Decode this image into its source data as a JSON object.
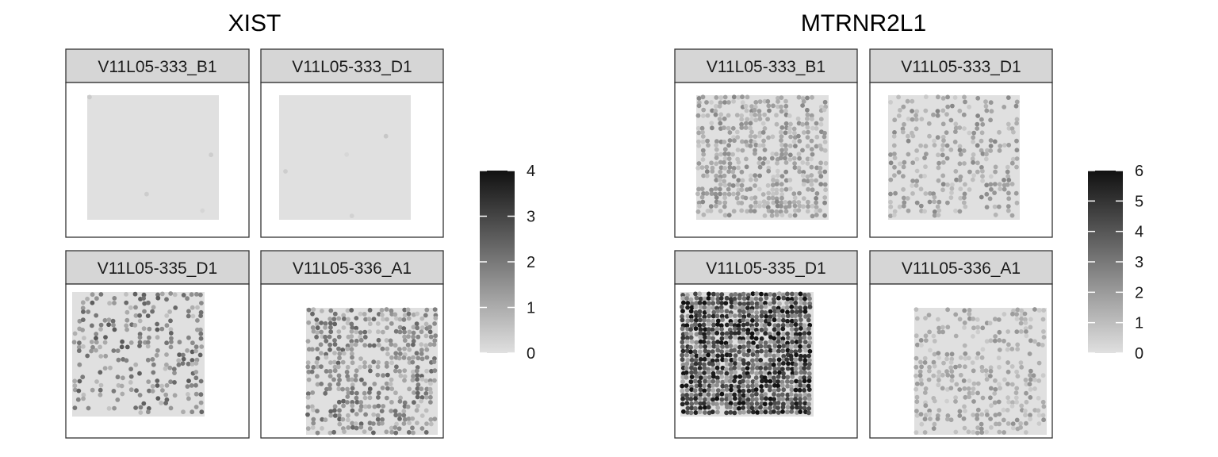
{
  "chart_data": [
    {
      "type": "scatter",
      "title": "XIST",
      "xlabel": "",
      "ylabel": "",
      "panels": [
        {
          "label": "V11L05-333_B1",
          "density": 0.004,
          "mean_expr": 0.3
        },
        {
          "label": "V11L05-333_D1",
          "density": 0.004,
          "mean_expr": 0.3
        },
        {
          "label": "V11L05-335_D1",
          "density": 0.28,
          "mean_expr": 1.6
        },
        {
          "label": "V11L05-336_A1",
          "density": 0.45,
          "mean_expr": 1.5
        }
      ],
      "colorbar": {
        "min": 0,
        "max": 4,
        "ticks": [
          "0",
          "1",
          "2",
          "3",
          "4"
        ],
        "low_color": "#e0e0e0",
        "high_color": "#111111"
      }
    },
    {
      "type": "scatter",
      "title": "MTRNR2L1",
      "xlabel": "",
      "ylabel": "",
      "panels": [
        {
          "label": "V11L05-333_B1",
          "density": 0.5,
          "mean_expr": 1.6
        },
        {
          "label": "V11L05-333_D1",
          "density": 0.28,
          "mean_expr": 1.6
        },
        {
          "label": "V11L05-335_D1",
          "density": 0.96,
          "mean_expr": 3.9
        },
        {
          "label": "V11L05-336_A1",
          "density": 0.3,
          "mean_expr": 1.4
        }
      ],
      "colorbar": {
        "min": 0,
        "max": 6,
        "ticks": [
          "0",
          "1",
          "2",
          "3",
          "4",
          "5",
          "6"
        ],
        "low_color": "#e0e0e0",
        "high_color": "#111111"
      }
    }
  ]
}
